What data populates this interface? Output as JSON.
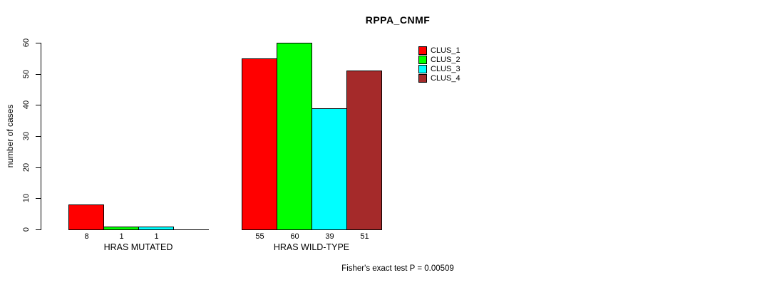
{
  "chart_data": {
    "type": "bar",
    "title": "RPPA_CNMF",
    "ylabel": "number of cases",
    "xlabel": "",
    "categories": [
      "HRAS MUTATED",
      "HRAS WILD-TYPE"
    ],
    "series": [
      {
        "name": "CLUS_1",
        "color": "#ff0000",
        "values": [
          8,
          55
        ]
      },
      {
        "name": "CLUS_2",
        "color": "#00ff00",
        "values": [
          1,
          60
        ]
      },
      {
        "name": "CLUS_3",
        "color": "#00ffff",
        "values": [
          1,
          39
        ]
      },
      {
        "name": "CLUS_4",
        "color": "#a52a2a",
        "values": [
          0,
          51
        ]
      }
    ],
    "bar_value_labels": [
      [
        "8",
        "1",
        "1",
        ""
      ],
      [
        "55",
        "60",
        "39",
        "51"
      ]
    ],
    "ylim": [
      0,
      60
    ],
    "yticks": [
      0,
      10,
      20,
      30,
      40,
      50,
      60
    ],
    "legend_position": "right",
    "grid": false,
    "annotation": "Fisher's exact test P = 0.00509",
    "axis_color": "#000000",
    "background_color": "#ffffff"
  }
}
